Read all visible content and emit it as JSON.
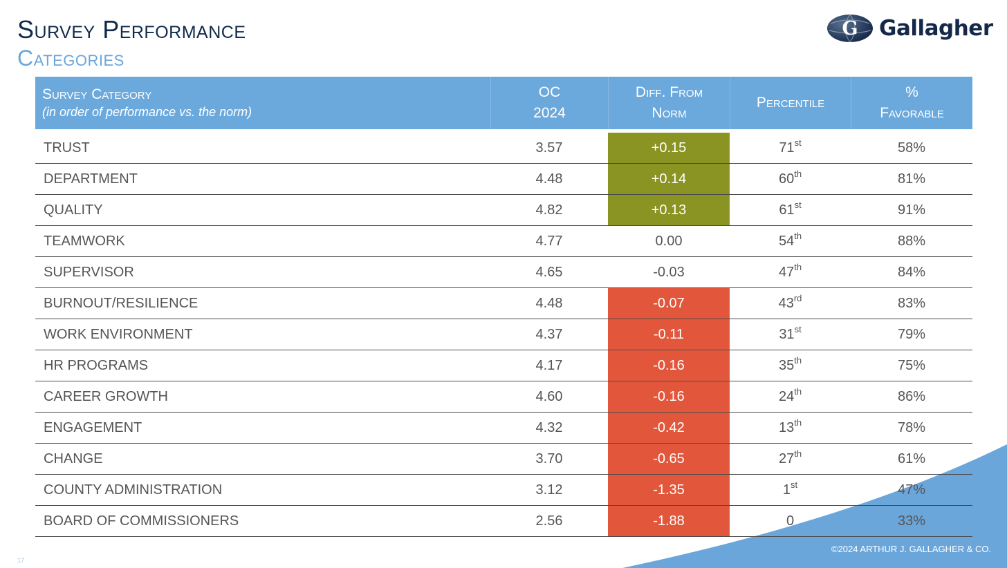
{
  "title": "Survey Performance",
  "subtitle": "Categories",
  "logo": {
    "text": "Gallagher",
    "icon": "globe-g-icon"
  },
  "colors": {
    "header": "#6ba9dd",
    "positive": "#8a9423",
    "negative": "#e2573b",
    "title": "#0f2a4a",
    "accent": "#6ba6db"
  },
  "table": {
    "headers": {
      "category": "Survey Category",
      "category_note": "(in order of performance vs. the norm)",
      "oc_line1": "OC",
      "oc_line2": "2024",
      "diff_line1": "Diff. From",
      "diff_line2": "Norm",
      "percentile": "Percentile",
      "fav_line1": "%",
      "fav_line2": "Favorable"
    },
    "rows": [
      {
        "category": "TRUST",
        "oc": "3.57",
        "diff": "+0.15",
        "status": "positive",
        "pct_num": "71",
        "pct_suffix": "st",
        "favorable": "58%"
      },
      {
        "category": "DEPARTMENT",
        "oc": "4.48",
        "diff": "+0.14",
        "status": "positive",
        "pct_num": "60",
        "pct_suffix": "th",
        "favorable": "81%"
      },
      {
        "category": "QUALITY",
        "oc": "4.82",
        "diff": "+0.13",
        "status": "positive",
        "pct_num": "61",
        "pct_suffix": "st",
        "favorable": "91%"
      },
      {
        "category": "TEAMWORK",
        "oc": "4.77",
        "diff": "0.00",
        "status": "neutral",
        "pct_num": "54",
        "pct_suffix": "th",
        "favorable": "88%"
      },
      {
        "category": "SUPERVISOR",
        "oc": "4.65",
        "diff": "-0.03",
        "status": "neutral",
        "pct_num": "47",
        "pct_suffix": "th",
        "favorable": "84%"
      },
      {
        "category": "BURNOUT/RESILIENCE",
        "oc": "4.48",
        "diff": "-0.07",
        "status": "negative",
        "pct_num": "43",
        "pct_suffix": "rd",
        "favorable": "83%"
      },
      {
        "category": "WORK ENVIRONMENT",
        "oc": "4.37",
        "diff": "-0.11",
        "status": "negative",
        "pct_num": "31",
        "pct_suffix": "st",
        "favorable": "79%"
      },
      {
        "category": "HR PROGRAMS",
        "oc": "4.17",
        "diff": "-0.16",
        "status": "negative",
        "pct_num": "35",
        "pct_suffix": "th",
        "favorable": "75%"
      },
      {
        "category": "CAREER GROWTH",
        "oc": "4.60",
        "diff": "-0.16",
        "status": "negative",
        "pct_num": "24",
        "pct_suffix": "th",
        "favorable": "86%"
      },
      {
        "category": "ENGAGEMENT",
        "oc": "4.32",
        "diff": "-0.42",
        "status": "negative",
        "pct_num": "13",
        "pct_suffix": "th",
        "favorable": "78%"
      },
      {
        "category": "CHANGE",
        "oc": "3.70",
        "diff": "-0.65",
        "status": "negative",
        "pct_num": "27",
        "pct_suffix": "th",
        "favorable": "61%"
      },
      {
        "category": "COUNTY ADMINISTRATION",
        "oc": "3.12",
        "diff": "-1.35",
        "status": "negative",
        "pct_num": "1",
        "pct_suffix": "st",
        "favorable": "47%"
      },
      {
        "category": "BOARD OF COMMISSIONERS",
        "oc": "2.56",
        "diff": "-1.88",
        "status": "negative",
        "pct_num": "0",
        "pct_suffix": "",
        "favorable": "33%"
      }
    ]
  },
  "footer": "©2024 ARTHUR J. GALLAGHER & CO.",
  "page_number": "17"
}
